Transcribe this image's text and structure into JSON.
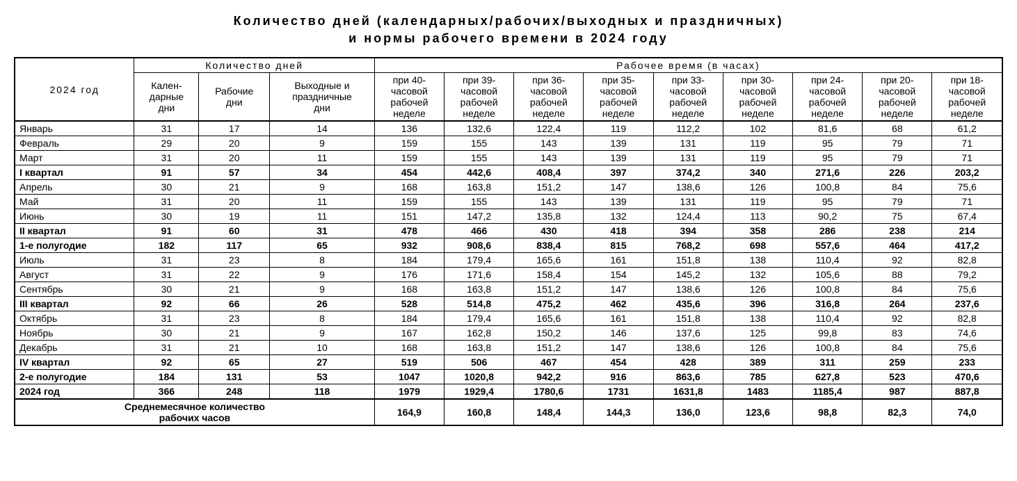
{
  "title_line1": "Количество дней (календарных/рабочих/выходных и праздничных)",
  "title_line2": "и нормы рабочего времени в 2024 году",
  "header": {
    "year": "2024 год",
    "days_group": "Количество дней",
    "hours_group": "Рабочее время (в часах)",
    "calendar": "Кален-\nдарные\nдни",
    "work": "Рабочие\nдни",
    "weekend": "Выходные и\nпраздничные\nдни",
    "h40": "при 40-\nчасовой\nрабочей\nнеделе",
    "h39": "при 39-\nчасовой\nрабочей\nнеделе",
    "h36": "при 36-\nчасовой\nрабочей\nнеделе",
    "h35": "при 35-\nчасовой\nрабочей\nнеделе",
    "h33": "при 33-\nчасовой\nрабочей\nнеделе",
    "h30": "при 30-\nчасовой\nрабочей\nнеделе",
    "h24": "при 24-\nчасовой\nрабочей\nнеделе",
    "h20": "при 20-\nчасовой\nрабочей\nнеделе",
    "h18": "при 18-\nчасовой\nрабочей\nнеделе"
  },
  "avg_label": "Среднемесячное количество\nрабочих часов",
  "rows": [
    {
      "label": "Январь",
      "bold": false,
      "v": [
        "31",
        "17",
        "14",
        "136",
        "132,6",
        "122,4",
        "119",
        "112,2",
        "102",
        "81,6",
        "68",
        "61,2"
      ]
    },
    {
      "label": "Февраль",
      "bold": false,
      "v": [
        "29",
        "20",
        "9",
        "159",
        "155",
        "143",
        "139",
        "131",
        "119",
        "95",
        "79",
        "71"
      ]
    },
    {
      "label": "Март",
      "bold": false,
      "v": [
        "31",
        "20",
        "11",
        "159",
        "155",
        "143",
        "139",
        "131",
        "119",
        "95",
        "79",
        "71"
      ]
    },
    {
      "label": "I квартал",
      "bold": true,
      "v": [
        "91",
        "57",
        "34",
        "454",
        "442,6",
        "408,4",
        "397",
        "374,2",
        "340",
        "271,6",
        "226",
        "203,2"
      ]
    },
    {
      "label": "Апрель",
      "bold": false,
      "v": [
        "30",
        "21",
        "9",
        "168",
        "163,8",
        "151,2",
        "147",
        "138,6",
        "126",
        "100,8",
        "84",
        "75,6"
      ]
    },
    {
      "label": "Май",
      "bold": false,
      "v": [
        "31",
        "20",
        "11",
        "159",
        "155",
        "143",
        "139",
        "131",
        "119",
        "95",
        "79",
        "71"
      ]
    },
    {
      "label": "Июнь",
      "bold": false,
      "v": [
        "30",
        "19",
        "11",
        "151",
        "147,2",
        "135,8",
        "132",
        "124,4",
        "113",
        "90,2",
        "75",
        "67,4"
      ]
    },
    {
      "label": "II квартал",
      "bold": true,
      "v": [
        "91",
        "60",
        "31",
        "478",
        "466",
        "430",
        "418",
        "394",
        "358",
        "286",
        "238",
        "214"
      ]
    },
    {
      "label": "1-е полугодие",
      "bold": true,
      "v": [
        "182",
        "117",
        "65",
        "932",
        "908,6",
        "838,4",
        "815",
        "768,2",
        "698",
        "557,6",
        "464",
        "417,2"
      ]
    },
    {
      "label": "Июль",
      "bold": false,
      "v": [
        "31",
        "23",
        "8",
        "184",
        "179,4",
        "165,6",
        "161",
        "151,8",
        "138",
        "110,4",
        "92",
        "82,8"
      ]
    },
    {
      "label": "Август",
      "bold": false,
      "v": [
        "31",
        "22",
        "9",
        "176",
        "171,6",
        "158,4",
        "154",
        "145,2",
        "132",
        "105,6",
        "88",
        "79,2"
      ]
    },
    {
      "label": "Сентябрь",
      "bold": false,
      "v": [
        "30",
        "21",
        "9",
        "168",
        "163,8",
        "151,2",
        "147",
        "138,6",
        "126",
        "100,8",
        "84",
        "75,6"
      ]
    },
    {
      "label": "III квартал",
      "bold": true,
      "v": [
        "92",
        "66",
        "26",
        "528",
        "514,8",
        "475,2",
        "462",
        "435,6",
        "396",
        "316,8",
        "264",
        "237,6"
      ]
    },
    {
      "label": "Октябрь",
      "bold": false,
      "v": [
        "31",
        "23",
        "8",
        "184",
        "179,4",
        "165,6",
        "161",
        "151,8",
        "138",
        "110,4",
        "92",
        "82,8"
      ]
    },
    {
      "label": "Ноябрь",
      "bold": false,
      "v": [
        "30",
        "21",
        "9",
        "167",
        "162,8",
        "150,2",
        "146",
        "137,6",
        "125",
        "99,8",
        "83",
        "74,6"
      ]
    },
    {
      "label": "Декабрь",
      "bold": false,
      "v": [
        "31",
        "21",
        "10",
        "168",
        "163,8",
        "151,2",
        "147",
        "138,6",
        "126",
        "100,8",
        "84",
        "75,6"
      ]
    },
    {
      "label": "IV квартал",
      "bold": true,
      "v": [
        "92",
        "65",
        "27",
        "519",
        "506",
        "467",
        "454",
        "428",
        "389",
        "311",
        "259",
        "233"
      ]
    },
    {
      "label": "2-е полугодие",
      "bold": true,
      "v": [
        "184",
        "131",
        "53",
        "1047",
        "1020,8",
        "942,2",
        "916",
        "863,6",
        "785",
        "627,8",
        "523",
        "470,6"
      ]
    },
    {
      "label": "2024 год",
      "bold": true,
      "v": [
        "366",
        "248",
        "118",
        "1979",
        "1929,4",
        "1780,6",
        "1731",
        "1631,8",
        "1483",
        "1185,4",
        "987",
        "887,8"
      ]
    }
  ],
  "avg": [
    "164,9",
    "160,8",
    "148,4",
    "144,3",
    "136,0",
    "123,6",
    "98,8",
    "82,3",
    "74,0"
  ]
}
